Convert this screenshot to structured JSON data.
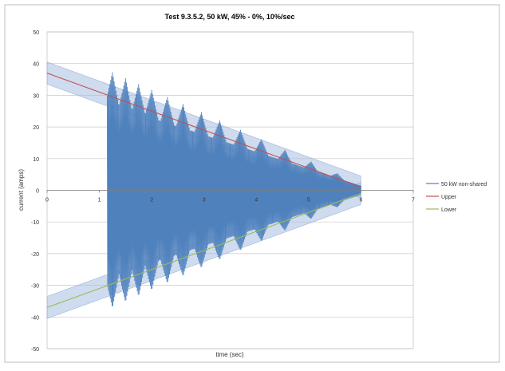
{
  "chart_data": {
    "type": "line",
    "title": "Test 9.3.5.2, 50 kW, 45% - 0%, 10%/sec",
    "xlabel": "time (sec)",
    "ylabel": "current (amps)",
    "xlim": [
      0,
      7
    ],
    "ylim": [
      -50,
      50
    ],
    "x_ticks": [
      0,
      1,
      2,
      3,
      4,
      5,
      6,
      7
    ],
    "y_ticks": [
      50,
      40,
      30,
      20,
      10,
      0,
      -10,
      -20,
      -30,
      -40,
      -50
    ],
    "grid": true,
    "legend_position": "right",
    "series": [
      {
        "name": "50 kW non-shared",
        "color": "#4f81bd",
        "signal": {
          "start": 1.15,
          "end": 6.0,
          "amp_start": 38,
          "amp_end": 2,
          "cycles_per_sec": 60,
          "beat_peaks": [
            1.25,
            1.5,
            1.75,
            2.0,
            2.3,
            2.6,
            2.95,
            3.3,
            3.7,
            4.1,
            4.55,
            5.05,
            5.55
          ]
        }
      },
      {
        "name": "Upper",
        "color": "#c0504d",
        "points": [
          [
            0,
            37
          ],
          [
            6,
            1
          ]
        ]
      },
      {
        "name": "Lower",
        "color": "#9bbb59",
        "points": [
          [
            0,
            -37
          ],
          [
            6,
            -1
          ]
        ]
      }
    ],
    "tolerance_band": {
      "color": "#a8bde0",
      "half_width": 3.5
    }
  }
}
